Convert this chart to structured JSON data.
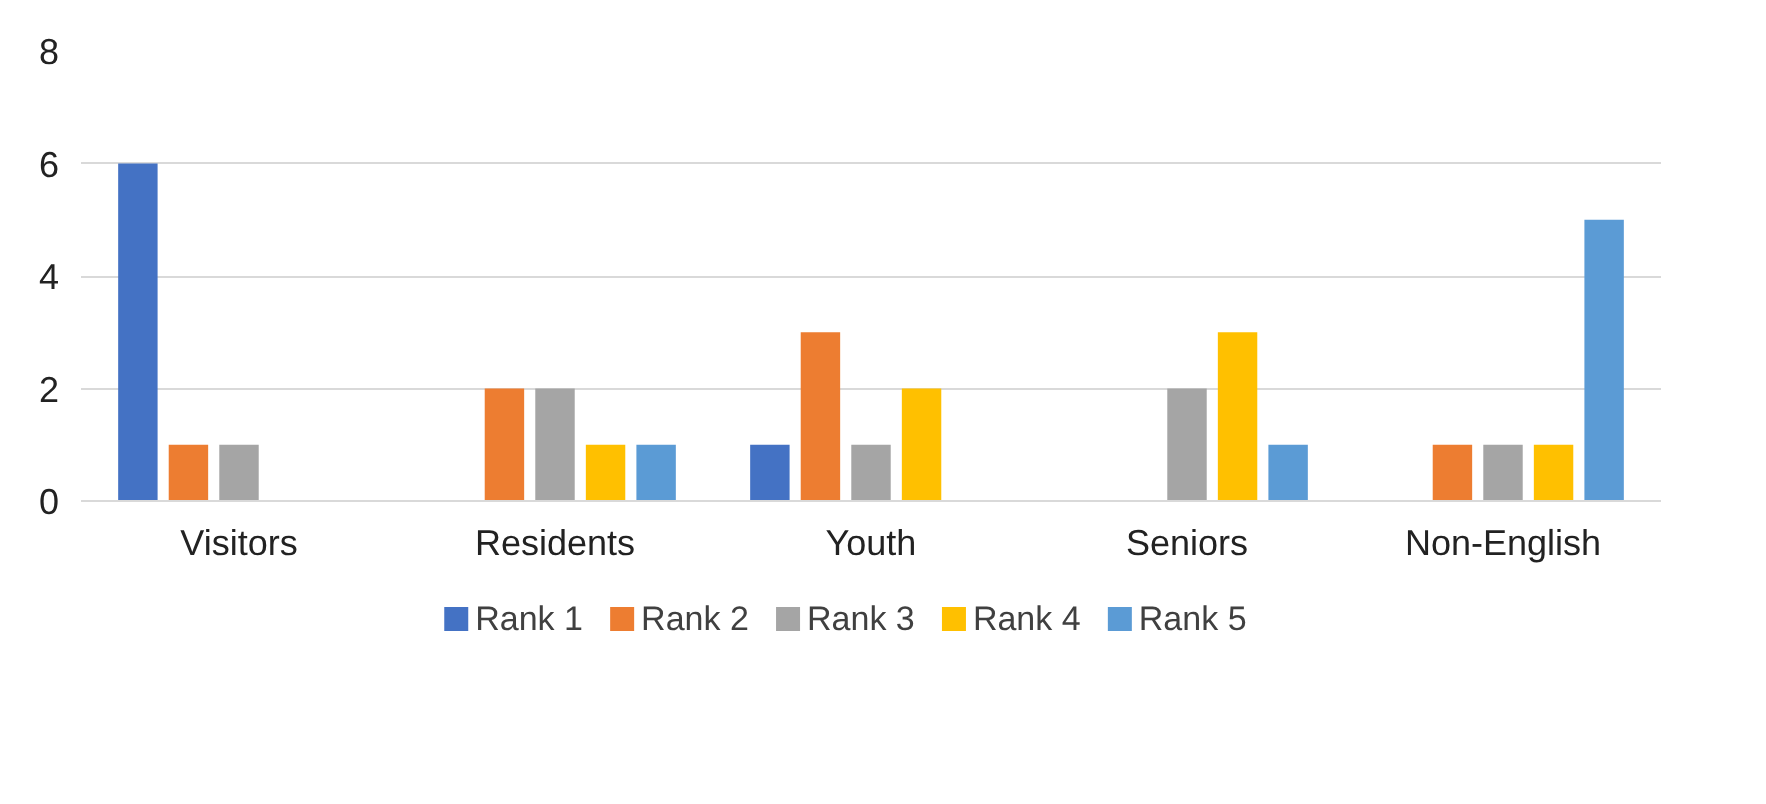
{
  "chart_data": {
    "type": "bar",
    "categories": [
      "Visitors",
      "Residents",
      "Youth",
      "Seniors",
      "Non-English"
    ],
    "series": [
      {
        "name": "Rank 1",
        "color": "#4472c4",
        "values": [
          6,
          0,
          1,
          0,
          0
        ]
      },
      {
        "name": "Rank 2",
        "color": "#ed7d31",
        "values": [
          1,
          2,
          3,
          0,
          1
        ]
      },
      {
        "name": "Rank 3",
        "color": "#a5a5a5",
        "values": [
          1,
          2,
          1,
          2,
          1
        ]
      },
      {
        "name": "Rank 4",
        "color": "#ffc000",
        "values": [
          0,
          1,
          2,
          3,
          1
        ]
      },
      {
        "name": "Rank 5",
        "color": "#5b9bd5",
        "values": [
          0,
          1,
          0,
          1,
          5
        ]
      }
    ],
    "ylim": [
      0,
      8
    ],
    "yticks": [
      0,
      2,
      4,
      6,
      8
    ],
    "grid": "y",
    "legend": "bottom"
  }
}
